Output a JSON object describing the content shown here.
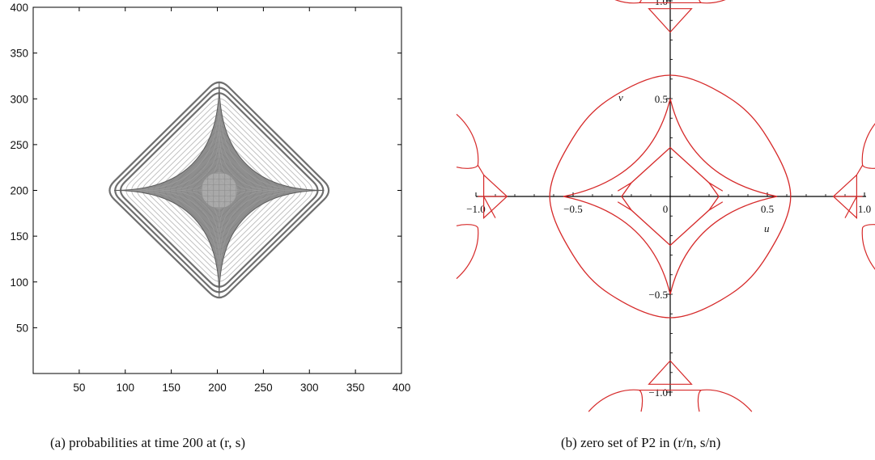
{
  "chart_data": [
    {
      "type": "heatmap",
      "xlim": [
        0,
        400
      ],
      "ylim": [
        0,
        400
      ],
      "x_ticks": [
        50,
        100,
        150,
        200,
        250,
        300,
        350,
        400
      ],
      "y_ticks": [
        50,
        100,
        150,
        200,
        250,
        300,
        350,
        400
      ],
      "grid": false,
      "caption": "(a) probabilities at time 200 at (r, s)",
      "support_vertices": [
        [
          78,
          200
        ],
        [
          202,
          323
        ],
        [
          326,
          200
        ],
        [
          202,
          78
        ]
      ],
      "dark_star": {
        "center": [
          202,
          200
        ],
        "tips": [
          [
            88,
            200
          ],
          [
            202,
            318
          ],
          [
            316,
            200
          ],
          [
            202,
            84
          ]
        ]
      },
      "colors": {
        "fill": "#7a7a7a",
        "light": "#d4d4d4"
      }
    },
    {
      "type": "line",
      "title": "",
      "xlabel": "u",
      "ylabel": "v",
      "xlim": [
        -1.0,
        1.0
      ],
      "ylim": [
        -1.0,
        1.0
      ],
      "x_tick_labels": [
        "-1.0",
        "-0.5",
        "0",
        "0.5",
        "1.0"
      ],
      "y_tick_labels": [
        "1.0",
        "0.5",
        "-0.5",
        "-1.0"
      ],
      "grid": false,
      "caption": "(b) zero set of P2 in (r/n, s/n)",
      "color": "#d62a2a",
      "series": [
        {
          "kind": "outer-rounded-square",
          "points": [
            [
              0,
              0.62
            ],
            [
              0.31,
              0.5
            ],
            [
              0.5,
              0.3
            ],
            [
              0.62,
              0
            ],
            [
              0.5,
              -0.3
            ],
            [
              0.31,
              -0.5
            ],
            [
              0,
              -0.62
            ],
            [
              -0.31,
              -0.5
            ],
            [
              -0.5,
              -0.3
            ],
            [
              -0.62,
              0
            ],
            [
              -0.5,
              0.3
            ],
            [
              -0.31,
              0.5
            ],
            [
              0,
              0.62
            ]
          ]
        },
        {
          "kind": "inner-astroid",
          "points": [
            [
              0,
              0.5
            ],
            [
              0.05,
              0.22
            ],
            [
              0.22,
              0.05
            ],
            [
              0.55,
              0
            ],
            [
              0.22,
              -0.05
            ],
            [
              0.05,
              -0.22
            ],
            [
              0,
              -0.5
            ],
            [
              -0.05,
              -0.22
            ],
            [
              -0.22,
              -0.05
            ],
            [
              -0.55,
              0
            ],
            [
              -0.22,
              0.05
            ],
            [
              -0.05,
              0.22
            ],
            [
              0,
              0.5
            ]
          ]
        },
        {
          "kind": "small-diamond",
          "points": [
            [
              0,
              0.25
            ],
            [
              0.2,
              0.07
            ],
            [
              0.25,
              0
            ],
            [
              0.2,
              -0.07
            ],
            [
              0,
              -0.25
            ],
            [
              -0.2,
              -0.07
            ],
            [
              -0.25,
              0
            ],
            [
              -0.2,
              0.07
            ],
            [
              0,
              0.25
            ]
          ]
        }
      ]
    }
  ]
}
